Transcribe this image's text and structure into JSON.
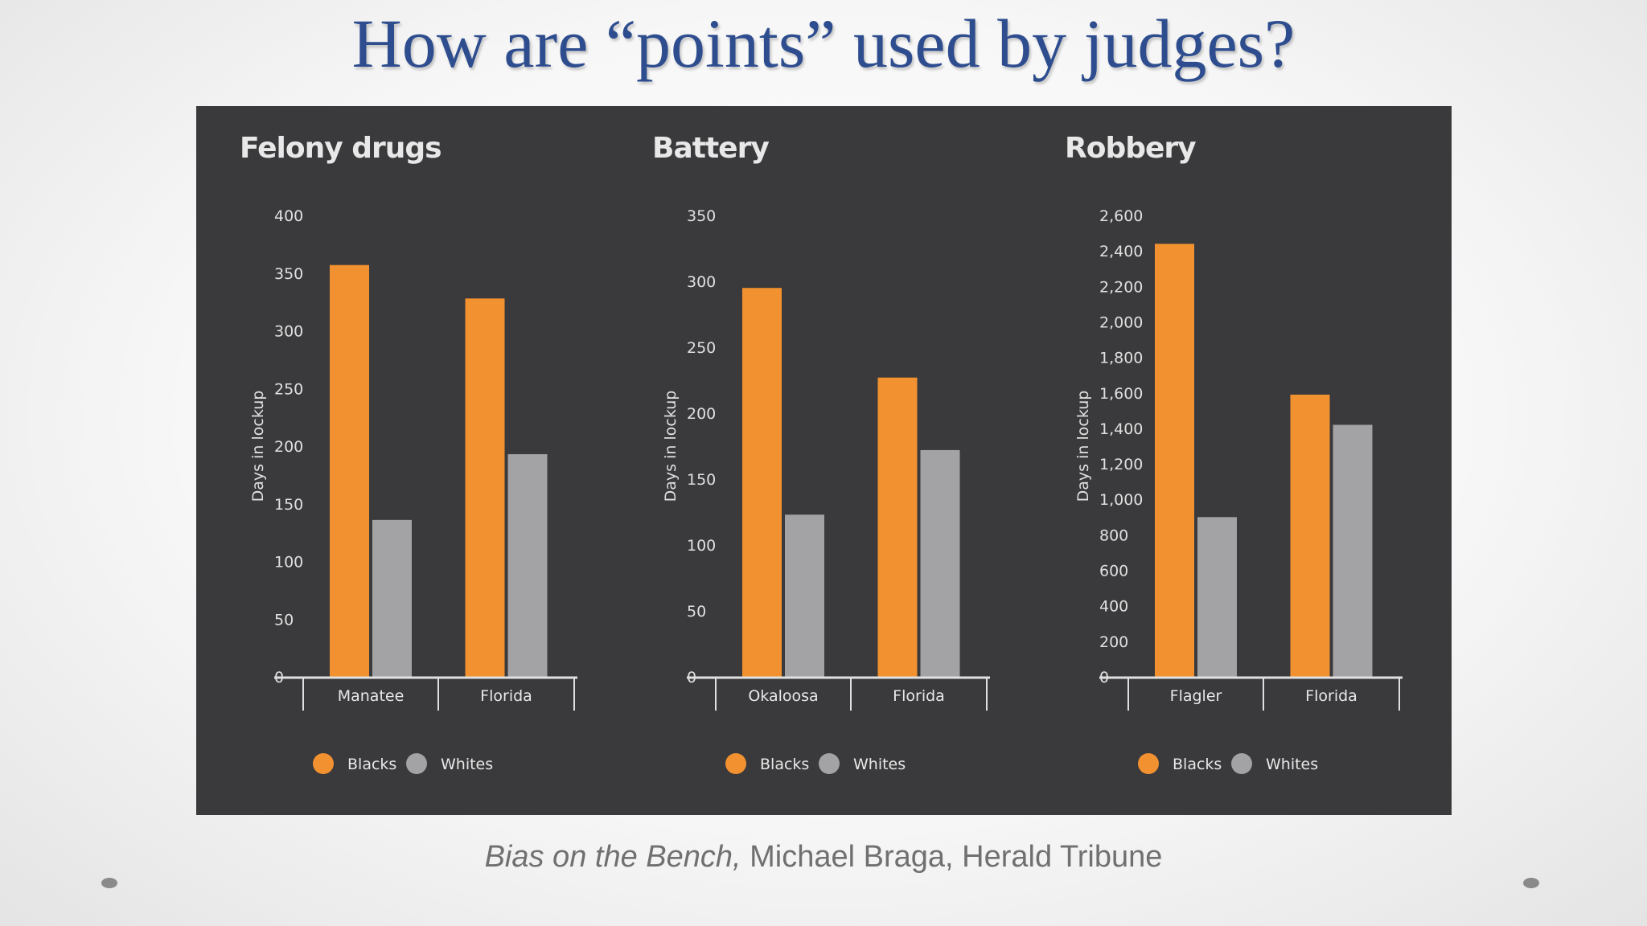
{
  "slide": {
    "title": "How are “points” used by judges?",
    "caption_italic": "Bias on the Bench,",
    "caption_rest": " Michael Braga, Herald Tribune"
  },
  "colors": {
    "blacks": "#f29130",
    "whites": "#a3a3a6",
    "panel": "#3a3a3c"
  },
  "chart_data": [
    {
      "type": "bar",
      "title": "Felony drugs",
      "ylabel": "Days in lockup",
      "categories": [
        "Manatee",
        "Florida"
      ],
      "series": [
        {
          "name": "Blacks",
          "values": [
            357,
            328
          ]
        },
        {
          "name": "Whites",
          "values": [
            136,
            193
          ]
        }
      ],
      "ylim": [
        0,
        400
      ],
      "yticks": [
        0,
        50,
        100,
        150,
        200,
        250,
        300,
        350,
        400
      ],
      "yticklabels": [
        "0",
        "50",
        "100",
        "150",
        "200",
        "250",
        "300",
        "350",
        "400"
      ],
      "legend": "bottom"
    },
    {
      "type": "bar",
      "title": "Battery",
      "ylabel": "Days in lockup",
      "categories": [
        "Okaloosa",
        "Florida"
      ],
      "series": [
        {
          "name": "Blacks",
          "values": [
            295,
            227
          ]
        },
        {
          "name": "Whites",
          "values": [
            123,
            172
          ]
        }
      ],
      "ylim": [
        0,
        350
      ],
      "yticks": [
        0,
        50,
        100,
        150,
        200,
        250,
        300,
        350
      ],
      "yticklabels": [
        "0",
        "50",
        "100",
        "150",
        "200",
        "250",
        "300",
        "350"
      ],
      "legend": "bottom"
    },
    {
      "type": "bar",
      "title": "Robbery",
      "ylabel": "Days in lockup",
      "categories": [
        "Flagler",
        "Florida"
      ],
      "series": [
        {
          "name": "Blacks",
          "values": [
            2440,
            1590
          ]
        },
        {
          "name": "Whites",
          "values": [
            900,
            1420
          ]
        }
      ],
      "ylim": [
        0,
        2600
      ],
      "yticks": [
        0,
        200,
        400,
        600,
        800,
        1000,
        1200,
        1400,
        1600,
        1800,
        2000,
        2200,
        2400,
        2600
      ],
      "yticklabels": [
        "0",
        "200",
        "400",
        "600",
        "800",
        "1,000",
        "1,200",
        "1,400",
        "1,600",
        "1,800",
        "2,000",
        "2,200",
        "2,400",
        "2,600"
      ],
      "legend": "bottom"
    }
  ]
}
